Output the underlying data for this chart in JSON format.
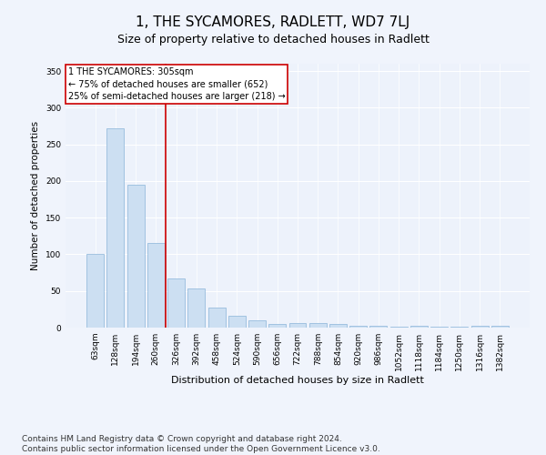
{
  "title": "1, THE SYCAMORES, RADLETT, WD7 7LJ",
  "subtitle": "Size of property relative to detached houses in Radlett",
  "xlabel": "Distribution of detached houses by size in Radlett",
  "ylabel": "Number of detached properties",
  "bar_color": "#ccdff2",
  "bar_edge_color": "#8ab4d8",
  "background_color": "#edf2fb",
  "grid_color": "#ffffff",
  "vline_color": "#cc0000",
  "vline_x_index": 3.5,
  "annotation_text": "1 THE SYCAMORES: 305sqm\n← 75% of detached houses are smaller (652)\n25% of semi-detached houses are larger (218) →",
  "annotation_box_color": "#ffffff",
  "annotation_box_edge": "#cc0000",
  "categories": [
    "63sqm",
    "128sqm",
    "194sqm",
    "260sqm",
    "326sqm",
    "392sqm",
    "458sqm",
    "524sqm",
    "590sqm",
    "656sqm",
    "722sqm",
    "788sqm",
    "854sqm",
    "920sqm",
    "986sqm",
    "1052sqm",
    "1118sqm",
    "1184sqm",
    "1250sqm",
    "1316sqm",
    "1382sqm"
  ],
  "values": [
    100,
    272,
    195,
    115,
    67,
    54,
    27,
    16,
    10,
    5,
    6,
    6,
    5,
    3,
    3,
    1,
    3,
    1,
    1,
    3,
    2
  ],
  "ylim": [
    0,
    360
  ],
  "yticks": [
    0,
    50,
    100,
    150,
    200,
    250,
    300,
    350
  ],
  "footer": "Contains HM Land Registry data © Crown copyright and database right 2024.\nContains public sector information licensed under the Open Government Licence v3.0.",
  "title_fontsize": 11,
  "subtitle_fontsize": 9,
  "footer_fontsize": 6.5,
  "ylabel_fontsize": 7.5,
  "xlabel_fontsize": 8,
  "tick_fontsize": 6.5,
  "annotation_fontsize": 7
}
